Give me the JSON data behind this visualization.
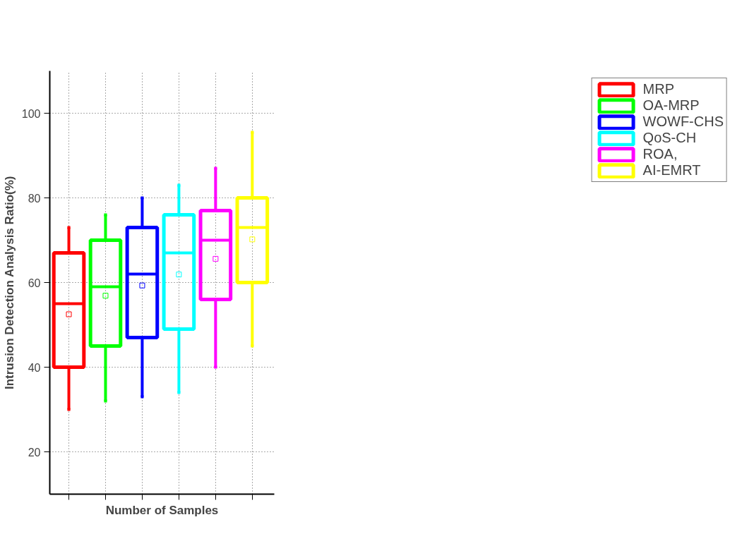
{
  "chart_data": {
    "type": "box",
    "xlabel": "Number of Samples",
    "ylabel": "Intrusion Detection Analysis Ratio(%)",
    "categories": [
      null,
      null,
      null,
      null,
      null,
      null
    ],
    "ylim": [
      10,
      110
    ],
    "yticks": [
      20,
      40,
      60,
      80,
      100
    ],
    "grid": true,
    "legend": "top right",
    "tick_labels": "y",
    "marker": "square",
    "series": [
      {
        "name": "MRP",
        "color": "#ff0000",
        "boxes": [
          {
            "low": 30,
            "q1": 40,
            "median": 55,
            "q3": 67,
            "high": 73,
            "mean": 52.5
          },
          null,
          null,
          null,
          null,
          null
        ]
      },
      {
        "name": "OA-MRP",
        "color": "#00ff00",
        "boxes": [
          null,
          {
            "low": 32,
            "q1": 45,
            "median": 59,
            "q3": 70,
            "high": 76,
            "mean": 56.9
          },
          null,
          null,
          null,
          null
        ]
      },
      {
        "name": "WOWF-CHS",
        "color": "#0000ff",
        "boxes": [
          null,
          null,
          {
            "low": 33,
            "q1": 47,
            "median": 62,
            "q3": 73,
            "high": 80,
            "mean": 59.3
          },
          null,
          null,
          null
        ]
      },
      {
        "name": "QoS-CH",
        "color": "#00ffff",
        "boxes": [
          null,
          null,
          null,
          {
            "low": 34,
            "q1": 49,
            "median": 67,
            "q3": 76,
            "high": 83,
            "mean": 61.9
          },
          null,
          null
        ]
      },
      {
        "name": "ROA,",
        "color": "#ff00ff",
        "boxes": [
          null,
          null,
          null,
          null,
          {
            "low": 40,
            "q1": 56,
            "median": 70,
            "q3": 77,
            "high": 87,
            "mean": 65.6
          },
          null
        ]
      },
      {
        "name": "AI-EMRT",
        "color": "#ffff00",
        "boxes": [
          null,
          null,
          null,
          null,
          null,
          {
            "low": 45,
            "q1": 60,
            "median": 73,
            "q3": 80,
            "high": 95.5,
            "mean": 70.2
          }
        ]
      }
    ]
  }
}
